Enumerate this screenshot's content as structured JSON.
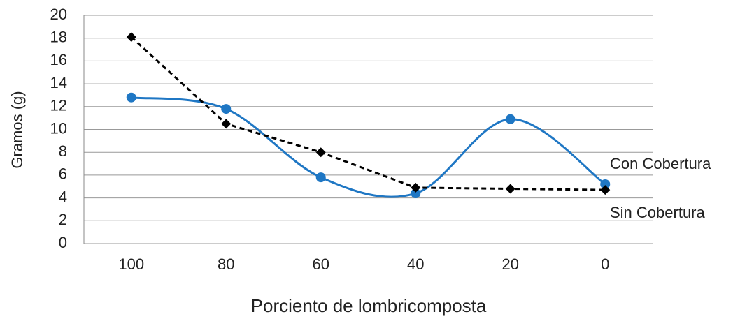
{
  "chart_data": {
    "type": "line",
    "x_label": "Porciento de lombricomposta",
    "y_label": "Gramos (g)",
    "categories": [
      "100",
      "80",
      "60",
      "40",
      "20",
      "0"
    ],
    "series": [
      {
        "name": "Con Cobertura",
        "color": "#1f77c4",
        "style": "smooth",
        "marker": "circle",
        "values": [
          12.8,
          11.8,
          5.8,
          4.4,
          10.9,
          5.2
        ]
      },
      {
        "name": "Sin Cobertura",
        "color": "#000000",
        "style": "dashed",
        "marker": "diamond",
        "values": [
          18.1,
          10.5,
          8.0,
          4.9,
          4.8,
          4.7
        ]
      }
    ],
    "ylim": [
      0,
      20
    ],
    "yticks": [
      0,
      2,
      4,
      6,
      8,
      10,
      12,
      14,
      16,
      18,
      20
    ],
    "grid": true
  }
}
